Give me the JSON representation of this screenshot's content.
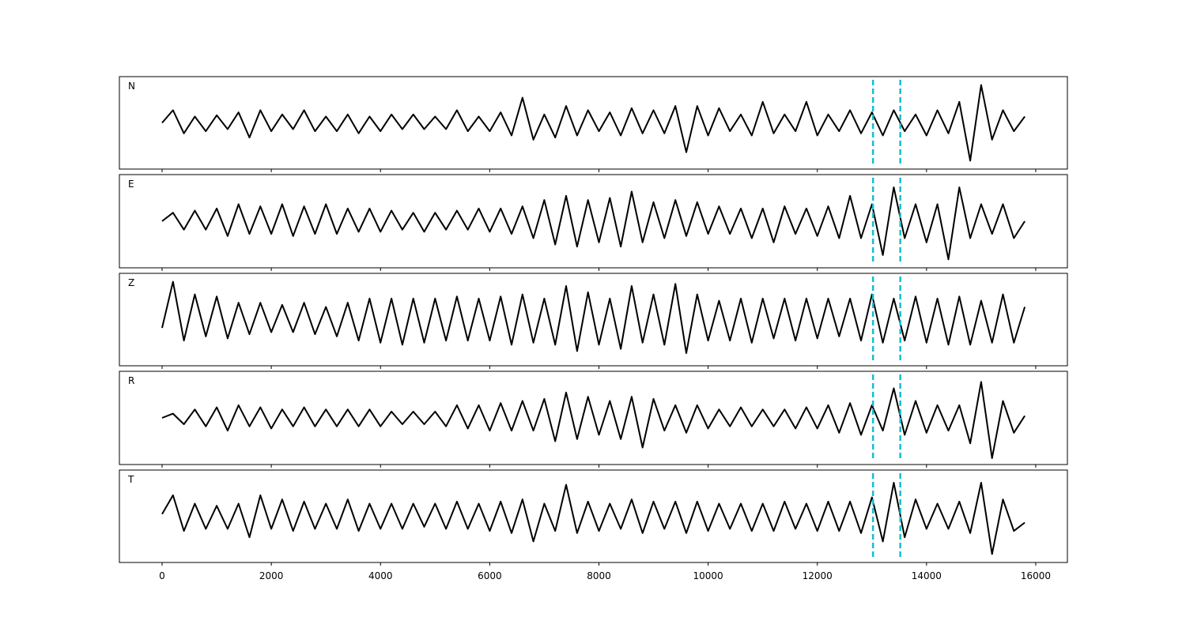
{
  "chart_data": {
    "type": "line",
    "x": [
      0,
      200,
      400,
      600,
      800,
      1000,
      1200,
      1400,
      1600,
      1800,
      2000,
      2200,
      2400,
      2600,
      2800,
      3000,
      3200,
      3400,
      3600,
      3800,
      4000,
      4200,
      4400,
      4600,
      4800,
      5000,
      5200,
      5400,
      5600,
      5800,
      6000,
      6200,
      6400,
      6600,
      6800,
      7000,
      7200,
      7400,
      7600,
      7800,
      8000,
      8200,
      8400,
      8600,
      8800,
      9000,
      9200,
      9400,
      9600,
      9800,
      10000,
      10200,
      10400,
      10600,
      10800,
      11000,
      11200,
      11400,
      11600,
      11800,
      12000,
      12200,
      12400,
      12600,
      12800,
      13000,
      13200,
      13400,
      13600,
      13800,
      14000,
      14200,
      14400,
      14600,
      14800,
      15000,
      15200,
      15400,
      15600,
      15800
    ],
    "xlim": [
      -782,
      16580
    ],
    "xticks": [
      0,
      2000,
      4000,
      6000,
      8000,
      10000,
      12000,
      14000,
      16000
    ],
    "ylim": [
      -1.1,
      1.1
    ],
    "vlines": {
      "values": [
        13020,
        13520
      ],
      "color": "#17becf"
    },
    "series": [
      {
        "name": "N",
        "color": "#000000",
        "values": [
          0,
          0.3,
          -0.25,
          0.15,
          -0.2,
          0.18,
          -0.15,
          0.25,
          -0.35,
          0.3,
          -0.2,
          0.2,
          -0.15,
          0.3,
          -0.2,
          0.15,
          -0.2,
          0.2,
          -0.25,
          0.15,
          -0.2,
          0.2,
          -0.15,
          0.2,
          -0.15,
          0.15,
          -0.15,
          0.3,
          -0.2,
          0.15,
          -0.2,
          0.25,
          -0.3,
          0.6,
          -0.4,
          0.2,
          -0.35,
          0.4,
          -0.3,
          0.3,
          -0.2,
          0.25,
          -0.3,
          0.35,
          -0.25,
          0.3,
          -0.25,
          0.4,
          -0.7,
          0.4,
          -0.3,
          0.35,
          -0.2,
          0.2,
          -0.3,
          0.5,
          -0.25,
          0.2,
          -0.2,
          0.5,
          -0.3,
          0.2,
          -0.2,
          0.3,
          -0.25,
          0.25,
          -0.3,
          0.3,
          -0.2,
          0.2,
          -0.3,
          0.3,
          -0.25,
          0.5,
          -0.9,
          0.9,
          -0.4,
          0.3,
          -0.2,
          0.15
        ]
      },
      {
        "name": "E",
        "color": "#000000",
        "values": [
          0,
          0.2,
          -0.2,
          0.25,
          -0.2,
          0.3,
          -0.35,
          0.4,
          -0.3,
          0.35,
          -0.3,
          0.4,
          -0.35,
          0.35,
          -0.3,
          0.4,
          -0.3,
          0.3,
          -0.25,
          0.3,
          -0.25,
          0.25,
          -0.2,
          0.2,
          -0.25,
          0.2,
          -0.2,
          0.25,
          -0.2,
          0.3,
          -0.25,
          0.3,
          -0.3,
          0.35,
          -0.4,
          0.5,
          -0.55,
          0.6,
          -0.6,
          0.5,
          -0.5,
          0.55,
          -0.6,
          0.7,
          -0.5,
          0.45,
          -0.4,
          0.5,
          -0.35,
          0.45,
          -0.3,
          0.35,
          -0.3,
          0.3,
          -0.4,
          0.3,
          -0.5,
          0.35,
          -0.3,
          0.3,
          -0.35,
          0.35,
          -0.4,
          0.6,
          -0.4,
          0.4,
          -0.8,
          0.8,
          -0.4,
          0.4,
          -0.5,
          0.4,
          -0.9,
          0.8,
          -0.4,
          0.4,
          -0.3,
          0.4,
          -0.4,
          0
        ]
      },
      {
        "name": "Z",
        "color": "#000000",
        "values": [
          -0.2,
          0.9,
          -0.5,
          0.6,
          -0.4,
          0.55,
          -0.45,
          0.4,
          -0.35,
          0.4,
          -0.3,
          0.35,
          -0.3,
          0.4,
          -0.35,
          0.3,
          -0.4,
          0.4,
          -0.5,
          0.5,
          -0.55,
          0.5,
          -0.6,
          0.5,
          -0.55,
          0.5,
          -0.5,
          0.55,
          -0.5,
          0.5,
          -0.5,
          0.55,
          -0.6,
          0.6,
          -0.55,
          0.5,
          -0.6,
          0.8,
          -0.75,
          0.65,
          -0.6,
          0.5,
          -0.7,
          0.8,
          -0.55,
          0.6,
          -0.6,
          0.85,
          -0.8,
          0.6,
          -0.5,
          0.45,
          -0.5,
          0.5,
          -0.55,
          0.5,
          -0.45,
          0.5,
          -0.5,
          0.5,
          -0.45,
          0.5,
          -0.4,
          0.5,
          -0.5,
          0.6,
          -0.55,
          0.5,
          -0.5,
          0.55,
          -0.55,
          0.5,
          -0.6,
          0.55,
          -0.6,
          0.45,
          -0.55,
          0.6,
          -0.55,
          0.3
        ]
      },
      {
        "name": "R",
        "color": "#000000",
        "values": [
          0,
          0.1,
          -0.15,
          0.2,
          -0.2,
          0.25,
          -0.3,
          0.3,
          -0.2,
          0.25,
          -0.25,
          0.2,
          -0.2,
          0.25,
          -0.2,
          0.2,
          -0.2,
          0.2,
          -0.2,
          0.2,
          -0.2,
          0.15,
          -0.15,
          0.15,
          -0.15,
          0.15,
          -0.2,
          0.3,
          -0.25,
          0.3,
          -0.3,
          0.35,
          -0.3,
          0.4,
          -0.3,
          0.45,
          -0.55,
          0.6,
          -0.5,
          0.5,
          -0.4,
          0.4,
          -0.5,
          0.5,
          -0.7,
          0.45,
          -0.3,
          0.3,
          -0.35,
          0.3,
          -0.25,
          0.2,
          -0.2,
          0.25,
          -0.2,
          0.2,
          -0.2,
          0.2,
          -0.25,
          0.25,
          -0.25,
          0.3,
          -0.35,
          0.35,
          -0.4,
          0.3,
          -0.3,
          0.7,
          -0.4,
          0.4,
          -0.35,
          0.3,
          -0.3,
          0.3,
          -0.6,
          0.85,
          -0.95,
          0.4,
          -0.35,
          0.05
        ]
      },
      {
        "name": "T",
        "color": "#000000",
        "values": [
          0.05,
          0.5,
          -0.35,
          0.3,
          -0.3,
          0.25,
          -0.3,
          0.3,
          -0.5,
          0.5,
          -0.3,
          0.4,
          -0.35,
          0.35,
          -0.3,
          0.3,
          -0.3,
          0.4,
          -0.35,
          0.3,
          -0.3,
          0.3,
          -0.3,
          0.3,
          -0.25,
          0.3,
          -0.3,
          0.35,
          -0.3,
          0.3,
          -0.35,
          0.35,
          -0.4,
          0.4,
          -0.6,
          0.3,
          -0.35,
          0.75,
          -0.4,
          0.35,
          -0.35,
          0.3,
          -0.3,
          0.4,
          -0.4,
          0.35,
          -0.3,
          0.35,
          -0.4,
          0.35,
          -0.35,
          0.3,
          -0.3,
          0.3,
          -0.35,
          0.3,
          -0.35,
          0.35,
          -0.3,
          0.3,
          -0.35,
          0.35,
          -0.35,
          0.35,
          -0.4,
          0.45,
          -0.6,
          0.8,
          -0.5,
          0.4,
          -0.3,
          0.3,
          -0.3,
          0.35,
          -0.4,
          0.8,
          -0.9,
          0.4,
          -0.35,
          -0.15
        ]
      }
    ]
  }
}
